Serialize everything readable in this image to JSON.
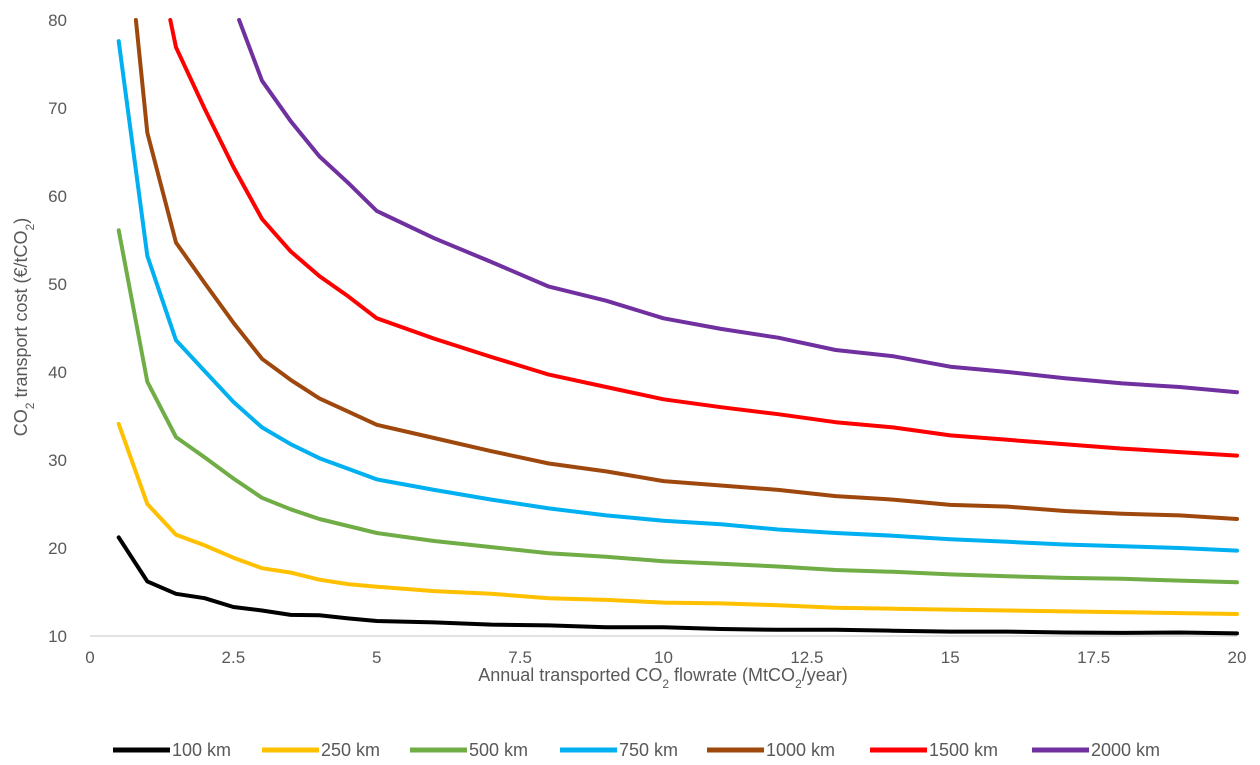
{
  "chart_data": {
    "type": "line",
    "title": "",
    "xlabel": "Annual transported CO2 flowrate (MtCO2/year)",
    "ylabel": "CO2 transport cost (€/tCO2)",
    "xlim": [
      0,
      20
    ],
    "ylim": [
      10,
      80
    ],
    "x_ticks": [
      "0",
      "2.5",
      "5",
      "7.5",
      "10",
      "12.5",
      "15",
      "17.5",
      "20"
    ],
    "y_ticks": [
      "10",
      "20",
      "30",
      "40",
      "50",
      "60",
      "70",
      "80"
    ],
    "grid": false,
    "legend_position": "bottom",
    "series": [
      {
        "name": "100 km",
        "color": "#000000",
        "x": [
          0.5,
          1,
          1.5,
          2,
          2.5,
          3,
          3.5,
          4,
          4.5,
          5,
          6,
          7,
          8,
          9,
          10,
          11,
          12,
          13,
          14,
          15,
          16,
          17,
          18,
          19,
          20
        ],
        "values": [
          21.2,
          16.2,
          14.8,
          14.3,
          13.3,
          12.9,
          12.4,
          12.35,
          12.0,
          11.7,
          11.55,
          11.3,
          11.2,
          11.0,
          11.0,
          10.8,
          10.7,
          10.7,
          10.6,
          10.5,
          10.5,
          10.4,
          10.35,
          10.4,
          10.3
        ]
      },
      {
        "name": "250 km",
        "color": "#FFC000",
        "x": [
          0.5,
          1,
          1.5,
          2,
          2.5,
          3,
          3.5,
          4,
          4.5,
          5,
          6,
          7,
          8,
          9,
          10,
          11,
          12,
          13,
          14,
          15,
          16,
          17,
          18,
          19,
          20
        ],
        "values": [
          34.1,
          25.0,
          21.5,
          20.3,
          18.9,
          17.7,
          17.2,
          16.4,
          15.9,
          15.6,
          15.1,
          14.8,
          14.3,
          14.1,
          13.8,
          13.7,
          13.5,
          13.2,
          13.1,
          13.0,
          12.9,
          12.8,
          12.7,
          12.6,
          12.5
        ]
      },
      {
        "name": "500 km",
        "color": "#70AD47",
        "x": [
          0.5,
          1,
          1.5,
          2,
          2.5,
          3,
          3.5,
          4,
          4.5,
          5,
          6,
          7,
          8,
          9,
          10,
          11,
          12,
          13,
          14,
          15,
          16,
          17,
          18,
          19,
          20
        ],
        "values": [
          56.1,
          38.9,
          32.6,
          30.3,
          27.9,
          25.7,
          24.4,
          23.3,
          22.5,
          21.7,
          20.8,
          20.1,
          19.4,
          19.0,
          18.5,
          18.2,
          17.9,
          17.5,
          17.3,
          17.0,
          16.8,
          16.6,
          16.5,
          16.3,
          16.1
        ]
      },
      {
        "name": "750 km",
        "color": "#00B0F0",
        "x": [
          0.5,
          1,
          1.5,
          2,
          2.5,
          3,
          3.5,
          4,
          4.5,
          5,
          6,
          7,
          8,
          9,
          10,
          11,
          12,
          13,
          14,
          15,
          16,
          17,
          18,
          19,
          20
        ],
        "values": [
          77.6,
          53.2,
          43.6,
          40.1,
          36.6,
          33.7,
          31.8,
          30.2,
          29.0,
          27.8,
          26.6,
          25.5,
          24.5,
          23.7,
          23.1,
          22.7,
          22.1,
          21.7,
          21.4,
          21.0,
          20.7,
          20.4,
          20.2,
          20.0,
          19.7
        ]
      },
      {
        "name": "1000 km",
        "color": "#9E480E",
        "x": [
          0.8,
          1,
          1.5,
          2,
          2.5,
          3,
          3.5,
          4,
          4.5,
          5,
          6,
          7,
          8,
          9,
          10,
          11,
          12,
          13,
          14,
          15,
          16,
          17,
          18,
          19,
          20
        ],
        "values": [
          80.0,
          67.2,
          54.7,
          50.1,
          45.6,
          41.5,
          39.1,
          37.0,
          35.5,
          34.0,
          32.5,
          31.0,
          29.6,
          28.7,
          27.6,
          27.1,
          26.6,
          25.9,
          25.5,
          24.9,
          24.7,
          24.2,
          23.9,
          23.7,
          23.3
        ]
      },
      {
        "name": "1500 km",
        "color": "#FF0000",
        "x": [
          1.4,
          1.5,
          2,
          2.5,
          3,
          3.5,
          4,
          4.5,
          5,
          6,
          7,
          8,
          9,
          10,
          11,
          12,
          13,
          14,
          15,
          16,
          17,
          18,
          19,
          20
        ],
        "values": [
          80.0,
          76.9,
          69.9,
          63.3,
          57.4,
          53.7,
          50.9,
          48.6,
          46.1,
          43.8,
          41.7,
          39.7,
          38.3,
          36.9,
          36.0,
          35.2,
          34.3,
          33.7,
          32.8,
          32.3,
          31.8,
          31.3,
          30.9,
          30.5
        ]
      },
      {
        "name": "2000 km",
        "color": "#7030A0",
        "x": [
          2.6,
          3,
          3.5,
          4,
          4.5,
          5,
          6,
          7,
          8,
          9,
          10,
          11,
          12,
          13,
          14,
          15,
          16,
          17,
          18,
          19,
          20
        ],
        "values": [
          80.0,
          73.1,
          68.5,
          64.5,
          61.5,
          58.3,
          55.2,
          52.5,
          49.7,
          48.1,
          46.1,
          44.9,
          43.9,
          42.5,
          41.8,
          40.6,
          40.0,
          39.3,
          38.7,
          38.3,
          37.7
        ]
      }
    ]
  }
}
